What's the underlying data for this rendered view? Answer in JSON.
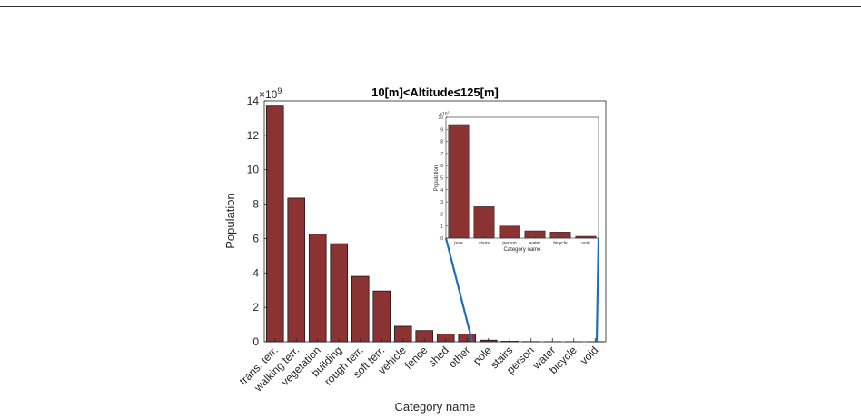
{
  "chart_data": [
    {
      "type": "bar",
      "title": "10[m]<Altitude≤125[m]",
      "xlabel": "Category name",
      "ylabel": "Population",
      "exponent_label": "×10",
      "exponent_power": "9",
      "categories": [
        "trans. terr.",
        "walking terr.",
        "vegetation",
        "building",
        "rough terr.",
        "soft terr.",
        "vehicle",
        "fence",
        "shed",
        "other",
        "pole",
        "stairs",
        "person",
        "water",
        "bicycle",
        "void"
      ],
      "values": [
        13.7,
        8.35,
        6.25,
        5.7,
        3.8,
        2.95,
        0.9,
        0.65,
        0.45,
        0.45,
        0.094,
        0.026,
        0.01,
        0.006,
        0.005,
        0.002
      ],
      "value_multiplier": 1000000000,
      "ylim": [
        0,
        14
      ],
      "yticks": [
        "0",
        "2",
        "4",
        "6",
        "8",
        "10",
        "12",
        "14"
      ],
      "bar_color": "#8b3232"
    },
    {
      "type": "bar",
      "title": "",
      "xlabel": "Category name",
      "ylabel": "Population",
      "exponent_label": "×10",
      "exponent_power": "7",
      "categories": [
        "pole",
        "stairs",
        "person",
        "water",
        "bicycle",
        "void"
      ],
      "values": [
        9.4,
        2.6,
        1.0,
        0.6,
        0.5,
        0.15
      ],
      "value_multiplier": 10000000,
      "ylim": [
        0,
        10
      ],
      "yticks": [
        "0",
        "1",
        "2",
        "3",
        "4",
        "5",
        "6",
        "7",
        "8",
        "9",
        "10"
      ],
      "bar_color": "#8b3232"
    }
  ],
  "zoom_line_color": "#1f6fb5"
}
